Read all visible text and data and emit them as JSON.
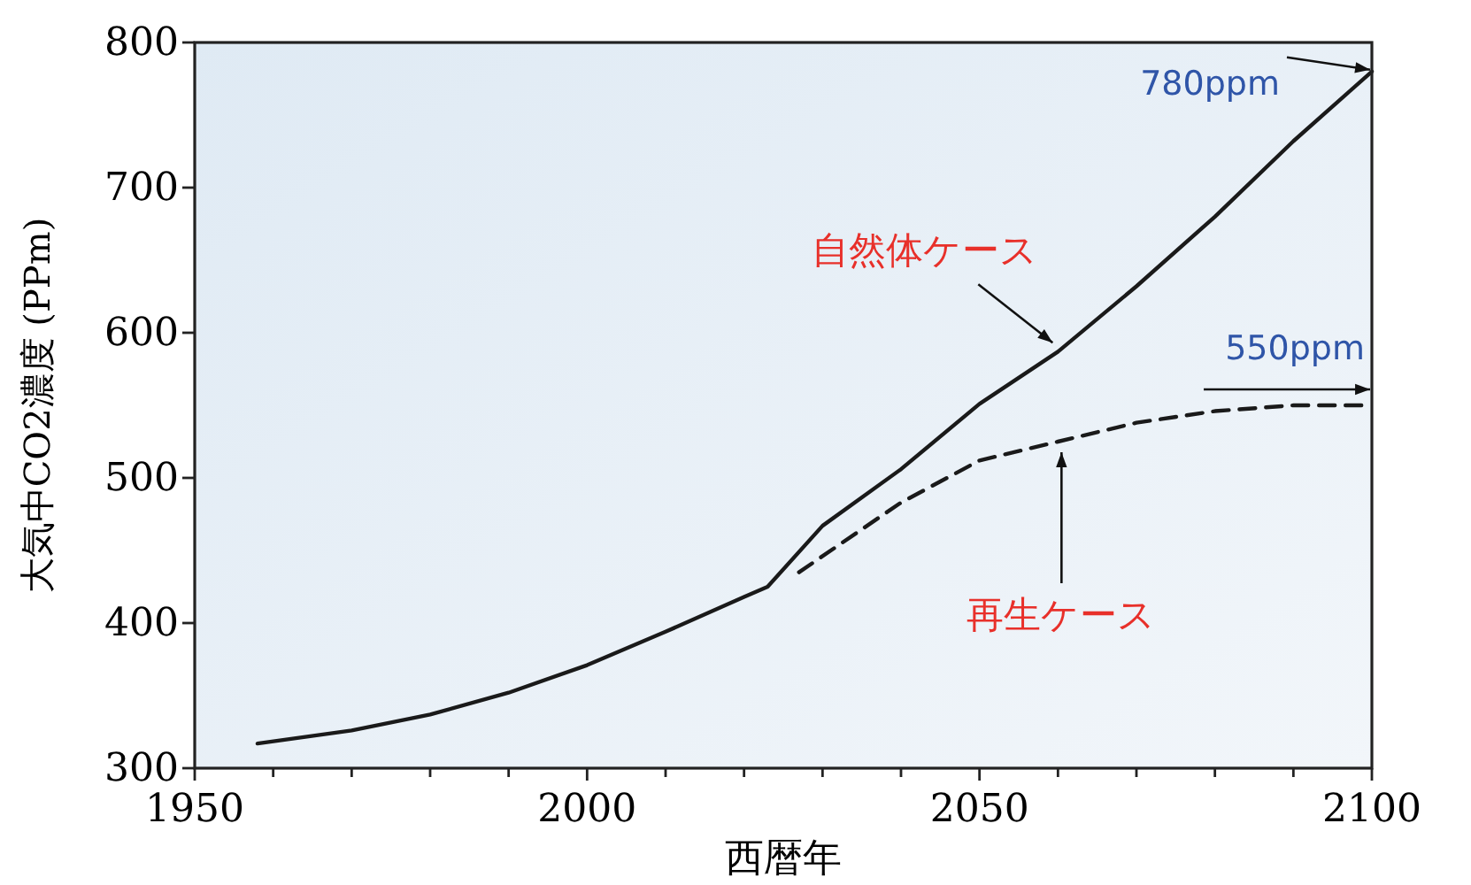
{
  "chart_data": {
    "type": "line",
    "xlabel": "西暦年",
    "ylabel": "大気中CO2濃度 (PPm)",
    "xlim": [
      1950,
      2100
    ],
    "ylim": [
      300,
      800
    ],
    "xticks": [
      1950,
      {
        "value": 1960,
        "label": null
      },
      {
        "value": 1970,
        "label": null
      },
      {
        "value": 1980,
        "label": null
      },
      {
        "value": 1990,
        "label": null
      },
      2000,
      {
        "value": 2010,
        "label": null
      },
      {
        "value": 2020,
        "label": null
      },
      {
        "value": 2030,
        "label": null
      },
      {
        "value": 2040,
        "label": null
      },
      2050,
      {
        "value": 2060,
        "label": null
      },
      {
        "value": 2070,
        "label": null
      },
      {
        "value": 2080,
        "label": null
      },
      {
        "value": 2090,
        "label": null
      },
      2100
    ],
    "yticks": [
      300,
      400,
      500,
      600,
      700,
      800
    ],
    "grid": false,
    "series": [
      {
        "name": "自然体ケース",
        "color": "#1a1a1a",
        "line_style": "solid",
        "x": [
          1958,
          1970,
          1980,
          1990,
          2000,
          2010,
          2020,
          2023,
          2030,
          2040,
          2050,
          2060,
          2070,
          2080,
          2090,
          2100
        ],
        "values": [
          317,
          326,
          337,
          352,
          371,
          394,
          418,
          425,
          467,
          506,
          551,
          587,
          632,
          680,
          732,
          780
        ]
      },
      {
        "name": "再生ケース",
        "color": "#1a1a1a",
        "line_style": "dashed",
        "x": [
          2027,
          2040,
          2050,
          2060,
          2070,
          2080,
          2090,
          2100
        ],
        "values": [
          435,
          483,
          512,
          525,
          538,
          546,
          550,
          550
        ]
      }
    ],
    "annotations": [
      {
        "text": "780ppm",
        "x": 2100,
        "y": 780
      },
      {
        "text": "550ppm",
        "x": 2100,
        "y": 550
      }
    ]
  }
}
